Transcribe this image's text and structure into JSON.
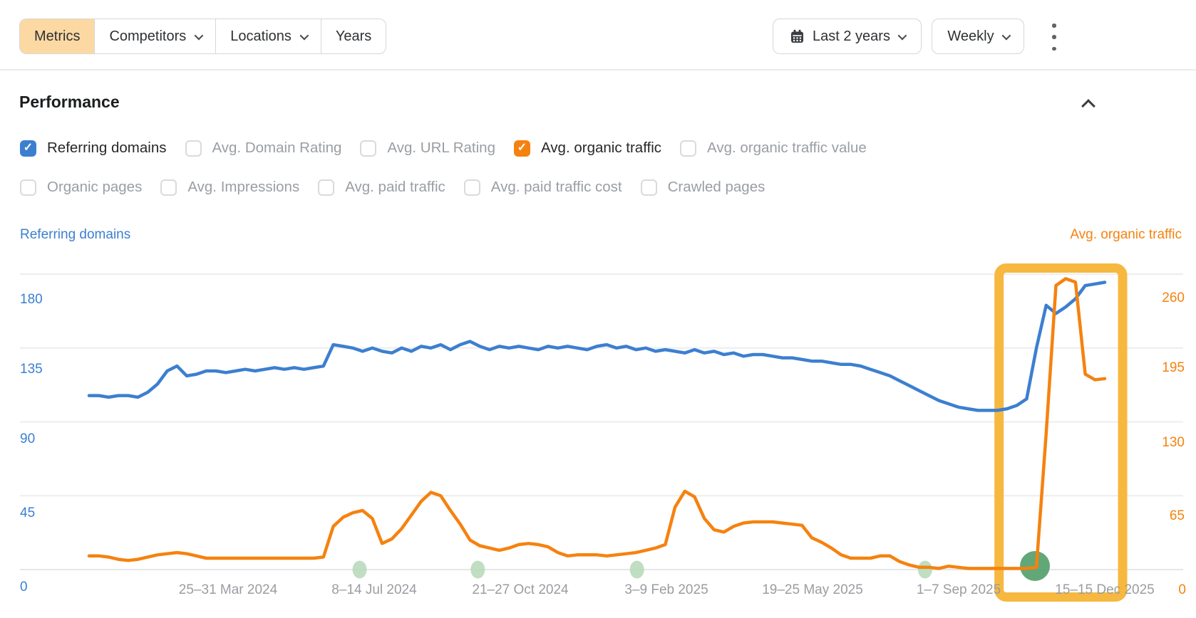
{
  "toolbar": {
    "tabs": [
      {
        "label": "Metrics",
        "active": true,
        "has_dropdown": false
      },
      {
        "label": "Competitors",
        "active": false,
        "has_dropdown": true
      },
      {
        "label": "Locations",
        "active": false,
        "has_dropdown": true
      },
      {
        "label": "Years",
        "active": false,
        "has_dropdown": false
      }
    ],
    "date_range_button": {
      "label": "Last 2 years",
      "icon": "calendar-icon"
    },
    "granularity_button": {
      "label": "Weekly"
    },
    "more_menu_icon": "kebab-vertical-icon",
    "active_tab_color": "#fcd9a3"
  },
  "performance": {
    "title": "Performance",
    "collapse_icon": "chevron-up-icon",
    "rows": [
      {
        "items": [
          {
            "label": "Referring domains",
            "checked": true,
            "color": "#3c7fd0"
          },
          {
            "label": "Avg. Domain Rating",
            "checked": false
          },
          {
            "label": "Avg. URL Rating",
            "checked": false
          },
          {
            "label": "Avg. organic traffic",
            "checked": true,
            "color": "#f5820f"
          },
          {
            "label": "Avg. organic traffic value",
            "checked": false
          }
        ]
      },
      {
        "items": [
          {
            "label": "Organic pages",
            "checked": false
          },
          {
            "label": "Avg. Impressions",
            "checked": false
          },
          {
            "label": "Avg. paid traffic",
            "checked": false
          },
          {
            "label": "Avg. paid traffic cost",
            "checked": false
          },
          {
            "label": "Crawled pages",
            "checked": false
          }
        ]
      }
    ]
  },
  "chart_data": {
    "type": "line",
    "granularity": "Weekly",
    "x_axis": {
      "labels": [
        "25–31 Mar 2024",
        "8–14 Jul 2024",
        "21–27 Oct 2024",
        "3–9 Feb 2025",
        "19–25 May 2025",
        "1–7 Sep 2025",
        "15–15 Dec 2025"
      ],
      "label_weeks": [
        14.2,
        29.2,
        44.2,
        59.1,
        74.1,
        89.0,
        104.0
      ]
    },
    "left_axis": {
      "label": "Referring domains",
      "color": "#3c7fd0",
      "ticks": [
        180,
        135,
        90,
        45,
        0
      ],
      "max_value": 195
    },
    "right_axis": {
      "label": "Avg. organic traffic",
      "color": "#f5820f",
      "ticks": [
        260,
        195,
        130,
        65,
        0
      ],
      "max_value": 282
    },
    "grid": true,
    "series": [
      {
        "name": "Referring domains",
        "axis": "left",
        "color": "#3c7fd0",
        "values": [
          106,
          106,
          105,
          106,
          106,
          105,
          108,
          113,
          121,
          124,
          118,
          119,
          121,
          121,
          120,
          121,
          122,
          121,
          122,
          123,
          122,
          123,
          122,
          123,
          124,
          137,
          136,
          135,
          133,
          135,
          133,
          132,
          135,
          133,
          136,
          135,
          137,
          134,
          137,
          139,
          136,
          134,
          136,
          135,
          136,
          135,
          134,
          136,
          135,
          136,
          135,
          134,
          136,
          137,
          135,
          136,
          134,
          135,
          133,
          134,
          133,
          132,
          134,
          132,
          133,
          131,
          132,
          130,
          131,
          131,
          130,
          129,
          129,
          128,
          127,
          127,
          126,
          125,
          125,
          124,
          122,
          120,
          118,
          115,
          112,
          109,
          106,
          103,
          101,
          99,
          98,
          97,
          97,
          97,
          98,
          100,
          104,
          135,
          161,
          156,
          160,
          165,
          173,
          174,
          175
        ]
      },
      {
        "name": "Avg. organic traffic",
        "axis": "right",
        "color": "#f5820f",
        "values": [
          12,
          12,
          11,
          9,
          8,
          9,
          11,
          13,
          14,
          15,
          14,
          12,
          10,
          10,
          10,
          10,
          10,
          10,
          10,
          10,
          10,
          10,
          10,
          10,
          11,
          38,
          46,
          50,
          52,
          45,
          23,
          27,
          36,
          48,
          60,
          68,
          65,
          52,
          40,
          26,
          21,
          19,
          17,
          19,
          22,
          23,
          22,
          20,
          15,
          12,
          13,
          13,
          13,
          12,
          13,
          14,
          15,
          17,
          19,
          22,
          55,
          69,
          64,
          45,
          35,
          33,
          38,
          41,
          42,
          42,
          42,
          41,
          40,
          39,
          28,
          24,
          19,
          13,
          10,
          10,
          10,
          12,
          12,
          7,
          4,
          2,
          2,
          1,
          3,
          2,
          1,
          1,
          1,
          1,
          1,
          1,
          1,
          2,
          120,
          250,
          256,
          253,
          172,
          167,
          168
        ]
      }
    ],
    "event_markers": {
      "small_weeks": [
        27.7,
        39.8,
        56.1,
        85.6
      ],
      "small_color": "#b5d8b7",
      "big_week": 96.85,
      "big_color": "#55a06c"
    },
    "highlight": {
      "start_week": 92.7,
      "end_week": 106.3,
      "color": "#f7b83f"
    }
  }
}
